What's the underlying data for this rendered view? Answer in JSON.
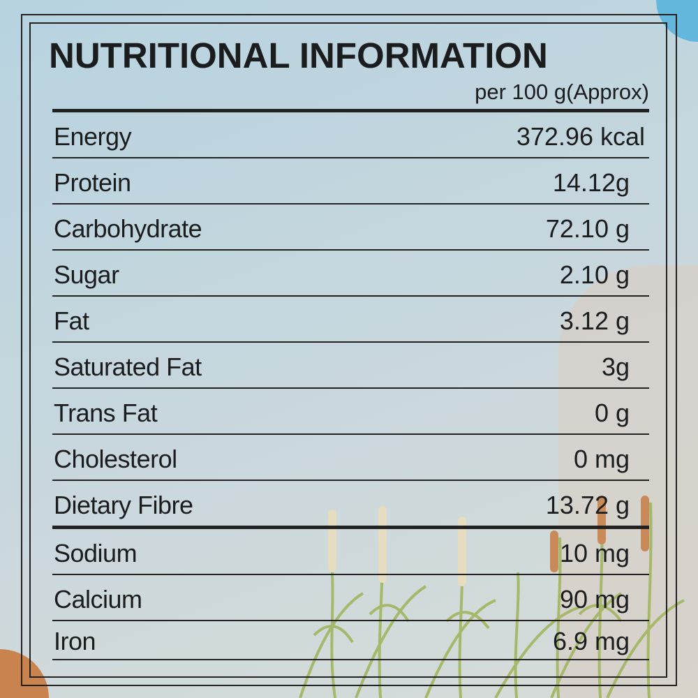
{
  "title": "NUTRITIONAL INFORMATION",
  "subtitle": "per 100 g(Approx)",
  "rows": [
    {
      "label": "Energy",
      "value": "372.96 kcal"
    },
    {
      "label": "Protein",
      "value": "14.12g"
    },
    {
      "label": "Carbohydrate",
      "value": "72.10 g"
    },
    {
      "label": "Sugar",
      "value": "2.10 g"
    },
    {
      "label": "Fat",
      "value": "3.12 g"
    },
    {
      "label": "Saturated Fat",
      "value": "3g"
    },
    {
      "label": "Trans Fat",
      "value": "0 g"
    },
    {
      "label": "Cholesterol",
      "value": "0 mg"
    },
    {
      "label": "Dietary Fibre",
      "value": "13.72 g"
    },
    {
      "label": "Sodium",
      "value": "10 mg"
    },
    {
      "label": "Calcium",
      "value": "90 mg"
    },
    {
      "label": "Iron",
      "value": "6.9 mg"
    }
  ],
  "colors": {
    "background": "#c4d6de",
    "ink": "#1a1c1e",
    "accent_blue": "#63b7dd",
    "accent_orange": "#c9834e"
  }
}
